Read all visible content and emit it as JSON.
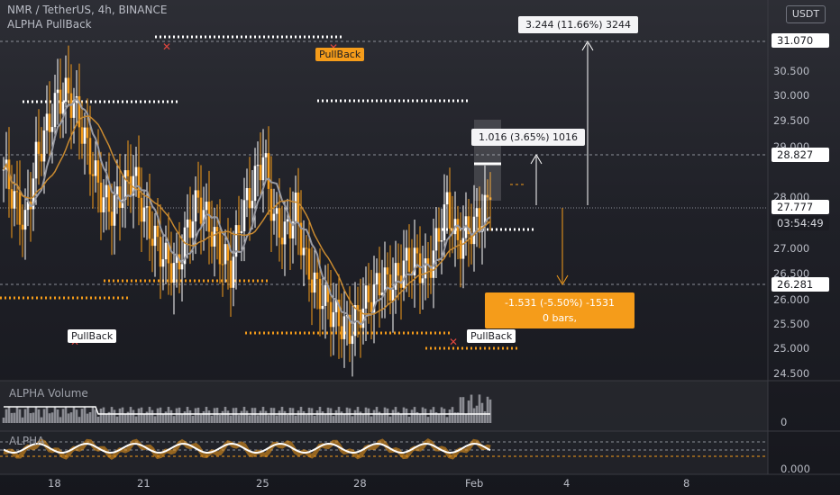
{
  "header": {
    "symbol_line": "NMR / TetherUS, 4h, BINANCE",
    "indicator_name": "ALPHA PullBack",
    "currency_button": "USDT"
  },
  "pullback_labels": [
    "PullBack",
    "PullBack",
    "PullBack"
  ],
  "measures": {
    "up_large": "3.244 (11.66%) 3244",
    "up_small": "1.016 (3.65%) 1016",
    "down_line1": "-1.531 (-5.50%) -1531",
    "down_line2": "0 bars,"
  },
  "price_axis": {
    "ticks": [
      "30.500",
      "30.000",
      "29.500",
      "29.000",
      "28.000",
      "27.000",
      "26.500",
      "26.000",
      "25.500",
      "25.000",
      "24.500"
    ],
    "tag_high": "31.070",
    "tag_target": "28.827",
    "tag_current": "27.777",
    "countdown": "03:54:49",
    "tag_low": "26.281"
  },
  "panels": {
    "volume_label": "ALPHA Volume",
    "volume_zero": "0",
    "osc_label": "ALPHA",
    "osc_zero": "0.000"
  },
  "time_axis": [
    "18",
    "21",
    "25",
    "28",
    "Feb",
    "4",
    "8"
  ],
  "colors": {
    "bull": "#ffffff",
    "bear": "#f59c1a",
    "accent_orange": "#f59c1a",
    "ma_gray": "#9a9ba3",
    "ma_orange": "#c98a30",
    "background": "#1f2027"
  },
  "chart_data": {
    "type": "candlestick",
    "y_range": [
      24.3,
      31.55
    ],
    "close_series": [
      28.4,
      27.8,
      27.3,
      28.6,
      29.2,
      29.8,
      29.9,
      29.4,
      28.6,
      27.9,
      27.6,
      28.0,
      28.3,
      27.5,
      27.0,
      26.6,
      26.4,
      27.2,
      27.8,
      27.3,
      26.8,
      26.4,
      27.5,
      28.0,
      28.7,
      27.4,
      27.1,
      27.6,
      26.5,
      26.0,
      25.7,
      25.4,
      25.2,
      25.6,
      25.9,
      26.2,
      26.1,
      26.5,
      26.6,
      26.3,
      26.9,
      27.7,
      26.9,
      27.2,
      27.4,
      27.8
    ],
    "pullback_levels": [
      31.07,
      29.9,
      29.9,
      26.4,
      26.0,
      25.3,
      25.0,
      27.6
    ],
    "measure_up_large": {
      "change": 3.244,
      "percent": 11.66,
      "ticks": 3244
    },
    "measure_up_small": {
      "change": 1.016,
      "percent": 3.65,
      "ticks": 1016
    },
    "measure_down": {
      "change": -1.531,
      "percent": -5.5,
      "ticks": -1531,
      "bars": 0
    }
  }
}
